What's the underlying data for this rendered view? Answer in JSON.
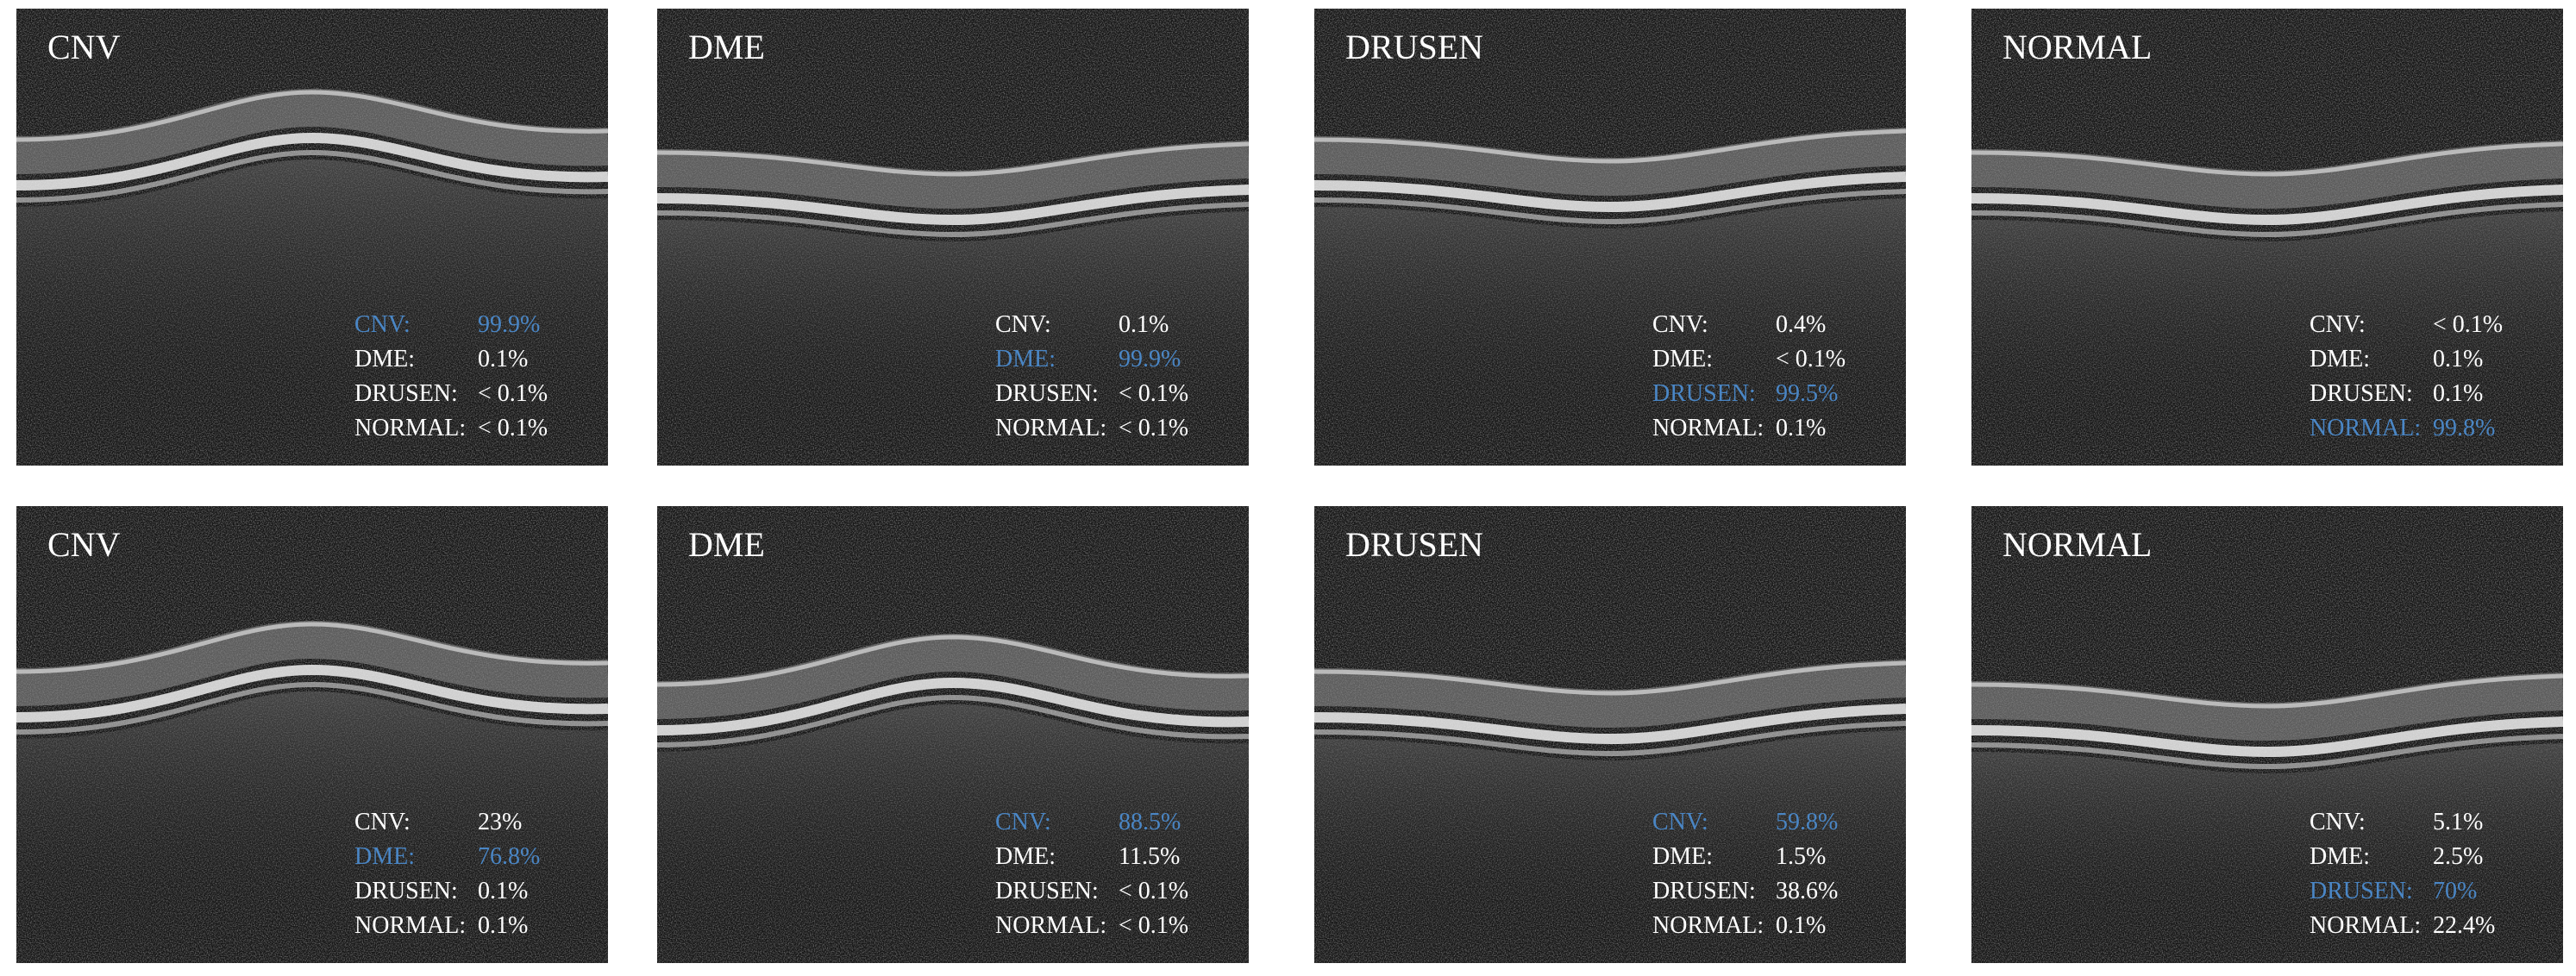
{
  "rows": [
    [
      {
        "label": "CNV",
        "predictions": [
          {
            "class": "CNV:",
            "value": "99.9%",
            "color": "#4a86c5"
          },
          {
            "class": "DME:",
            "value": "0.1%",
            "color": "#ffffff"
          },
          {
            "class": "DRUSEN:",
            "value": "< 0.1%",
            "color": "#ffffff"
          },
          {
            "class": "NORMAL:",
            "value": "< 0.1%",
            "color": "#ffffff"
          }
        ]
      },
      {
        "label": "DME",
        "predictions": [
          {
            "class": "CNV:",
            "value": "0.1%",
            "color": "#ffffff"
          },
          {
            "class": "DME:",
            "value": "99.9%",
            "color": "#4a86c5"
          },
          {
            "class": "DRUSEN:",
            "value": "< 0.1%",
            "color": "#ffffff"
          },
          {
            "class": "NORMAL:",
            "value": "< 0.1%",
            "color": "#ffffff"
          }
        ]
      },
      {
        "label": "DRUSEN",
        "predictions": [
          {
            "class": "CNV:",
            "value": "0.4%",
            "color": "#ffffff"
          },
          {
            "class": "DME:",
            "value": "< 0.1%",
            "color": "#ffffff"
          },
          {
            "class": "DRUSEN:",
            "value": "99.5%",
            "color": "#4a86c5"
          },
          {
            "class": "NORMAL:",
            "value": "0.1%",
            "color": "#ffffff"
          }
        ]
      },
      {
        "label": "NORMAL",
        "predictions": [
          {
            "class": "CNV:",
            "value": "< 0.1%",
            "color": "#ffffff"
          },
          {
            "class": "DME:",
            "value": "0.1%",
            "color": "#ffffff"
          },
          {
            "class": "DRUSEN:",
            "value": "0.1%",
            "color": "#ffffff"
          },
          {
            "class": "NORMAL:",
            "value": "99.8%",
            "color": "#4a86c5"
          }
        ]
      }
    ],
    [
      {
        "label": "CNV",
        "predictions": [
          {
            "class": "CNV:",
            "value": "23%",
            "color": "#ffffff"
          },
          {
            "class": "DME:",
            "value": "76.8%",
            "color": "#4a86c5"
          },
          {
            "class": "DRUSEN:",
            "value": "0.1%",
            "color": "#ffffff"
          },
          {
            "class": "NORMAL:",
            "value": "0.1%",
            "color": "#ffffff"
          }
        ]
      },
      {
        "label": "DME",
        "predictions": [
          {
            "class": "CNV:",
            "value": "88.5%",
            "color": "#4a86c5"
          },
          {
            "class": "DME:",
            "value": "11.5%",
            "color": "#ffffff"
          },
          {
            "class": "DRUSEN:",
            "value": "< 0.1%",
            "color": "#ffffff"
          },
          {
            "class": "NORMAL:",
            "value": "< 0.1%",
            "color": "#ffffff"
          }
        ]
      },
      {
        "label": "DRUSEN",
        "predictions": [
          {
            "class": "CNV:",
            "value": "59.8%",
            "color": "#4a86c5"
          },
          {
            "class": "DME:",
            "value": "1.5%",
            "color": "#ffffff"
          },
          {
            "class": "DRUSEN:",
            "value": "38.6%",
            "color": "#ffffff"
          },
          {
            "class": "NORMAL:",
            "value": "0.1%",
            "color": "#ffffff"
          }
        ]
      },
      {
        "label": "NORMAL",
        "predictions": [
          {
            "class": "CNV:",
            "value": "5.1%",
            "color": "#ffffff"
          },
          {
            "class": "DME:",
            "value": "2.5%",
            "color": "#ffffff"
          },
          {
            "class": "DRUSEN:",
            "value": "70%",
            "color": "#4a86c5"
          },
          {
            "class": "NORMAL:",
            "value": "22.4%",
            "color": "#ffffff"
          }
        ]
      }
    ]
  ]
}
